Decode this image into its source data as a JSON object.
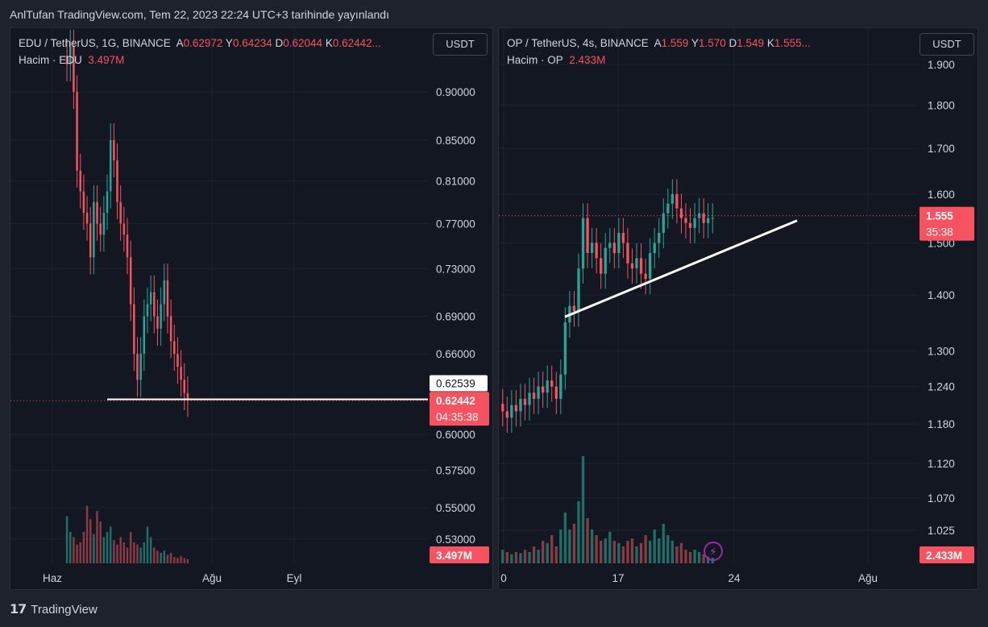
{
  "published": "AnlTufan TradingView.com, Tem 22, 2023 22:24 UTC+3 tarihinde yayınlandı",
  "brand": "TradingView",
  "colors": {
    "up": "#26a69a",
    "down": "#f7525f",
    "bg": "#131722",
    "grid": "#1e222d",
    "drawing": "#ffffff"
  },
  "icons": {
    "brand_logo": "tradingview-logo-icon",
    "lightning": "lightning-icon"
  },
  "chart_data": [
    {
      "type": "candlestick",
      "symbol": "EDU / TetherUS, 1G, BINANCE",
      "ohlc": {
        "o_label": "A",
        "o": "0.62972",
        "h_label": "Y",
        "h": "0.64234",
        "l_label": "D",
        "l": "0.62044",
        "c_label": "K",
        "c": "0.62442..."
      },
      "volume": {
        "label": "Hacim · EDU",
        "value": "3.497M"
      },
      "currency_button": "USDT",
      "y_ticks": [
        "0.90000",
        "0.85000",
        "0.81000",
        "0.77000",
        "0.73000",
        "0.69000",
        "0.66000",
        "0.60000",
        "0.57500",
        "0.55000",
        "0.53000"
      ],
      "y_tick_values": [
        0.9,
        0.85,
        0.81,
        0.77,
        0.73,
        0.69,
        0.66,
        0.6,
        0.575,
        0.55,
        0.53
      ],
      "y_scale": "log",
      "x_ticks": [
        "Haz",
        "Ağu",
        "Eyl"
      ],
      "last_price": "0.62442",
      "countdown": "04:35:38",
      "horizontal_line_label": "0.62539",
      "horizontal_line_value": 0.62539,
      "volume_label": "3.497M",
      "close_series": [
        0.93,
        0.95,
        0.9,
        0.82,
        0.8,
        0.78,
        0.77,
        0.74,
        0.79,
        0.77,
        0.76,
        0.78,
        0.8,
        0.85,
        0.83,
        0.79,
        0.77,
        0.76,
        0.74,
        0.7,
        0.66,
        0.64,
        0.66,
        0.69,
        0.7,
        0.71,
        0.69,
        0.68,
        0.7,
        0.72,
        0.69,
        0.67,
        0.66,
        0.65,
        0.64,
        0.63,
        0.625
      ],
      "volume_series": [
        0.45,
        0.3,
        0.25,
        0.18,
        0.2,
        0.3,
        0.55,
        0.42,
        0.28,
        0.5,
        0.4,
        0.25,
        0.3,
        0.35,
        0.22,
        0.18,
        0.25,
        0.2,
        0.15,
        0.3,
        0.2,
        0.18,
        0.15,
        0.2,
        0.35,
        0.25,
        0.15,
        0.12,
        0.1,
        0.12,
        0.08,
        0.1,
        0.06,
        0.05,
        0.07,
        0.05,
        0.04
      ]
    },
    {
      "type": "candlestick",
      "symbol": "OP / TetherUS, 4s, BINANCE",
      "ohlc": {
        "o_label": "A",
        "o": "1.559",
        "h_label": "Y",
        "h": "1.570",
        "l_label": "D",
        "l": "1.549",
        "c_label": "K",
        "c": "1.555..."
      },
      "volume": {
        "label": "Hacim · OP",
        "value": "2.433M"
      },
      "currency_button": "USDT",
      "y_ticks": [
        "1.900",
        "1.800",
        "1.700",
        "1.600",
        "1.500",
        "1.400",
        "1.300",
        "1.240",
        "1.180",
        "1.120",
        "1.070",
        "1.025"
      ],
      "y_tick_values": [
        1.9,
        1.8,
        1.7,
        1.6,
        1.5,
        1.4,
        1.3,
        1.24,
        1.18,
        1.12,
        1.07,
        1.025
      ],
      "y_scale": "log",
      "x_ticks": [
        "0",
        "17",
        "24",
        "Ağu"
      ],
      "last_price": "1.555",
      "countdown": "35:38",
      "volume_label": "2.433M",
      "trendline": {
        "from": 1.36,
        "to": 1.545
      },
      "close_series": [
        1.2,
        1.19,
        1.21,
        1.2,
        1.22,
        1.21,
        1.23,
        1.22,
        1.24,
        1.23,
        1.25,
        1.24,
        1.22,
        1.26,
        1.35,
        1.38,
        1.37,
        1.45,
        1.55,
        1.48,
        1.5,
        1.47,
        1.44,
        1.49,
        1.5,
        1.48,
        1.52,
        1.5,
        1.46,
        1.45,
        1.47,
        1.44,
        1.43,
        1.48,
        1.5,
        1.52,
        1.56,
        1.58,
        1.6,
        1.57,
        1.55,
        1.54,
        1.53,
        1.55,
        1.56,
        1.54,
        1.55,
        1.55
      ],
      "volume_series": [
        0.12,
        0.1,
        0.08,
        0.1,
        0.09,
        0.12,
        0.1,
        0.15,
        0.12,
        0.2,
        0.18,
        0.25,
        0.15,
        0.3,
        0.45,
        0.3,
        0.35,
        0.55,
        0.95,
        0.4,
        0.3,
        0.25,
        0.2,
        0.22,
        0.28,
        0.2,
        0.18,
        0.15,
        0.2,
        0.22,
        0.15,
        0.18,
        0.25,
        0.2,
        0.3,
        0.22,
        0.35,
        0.25,
        0.2,
        0.15,
        0.18,
        0.12,
        0.1,
        0.12,
        0.1,
        0.08,
        0.06,
        0.05
      ]
    }
  ]
}
